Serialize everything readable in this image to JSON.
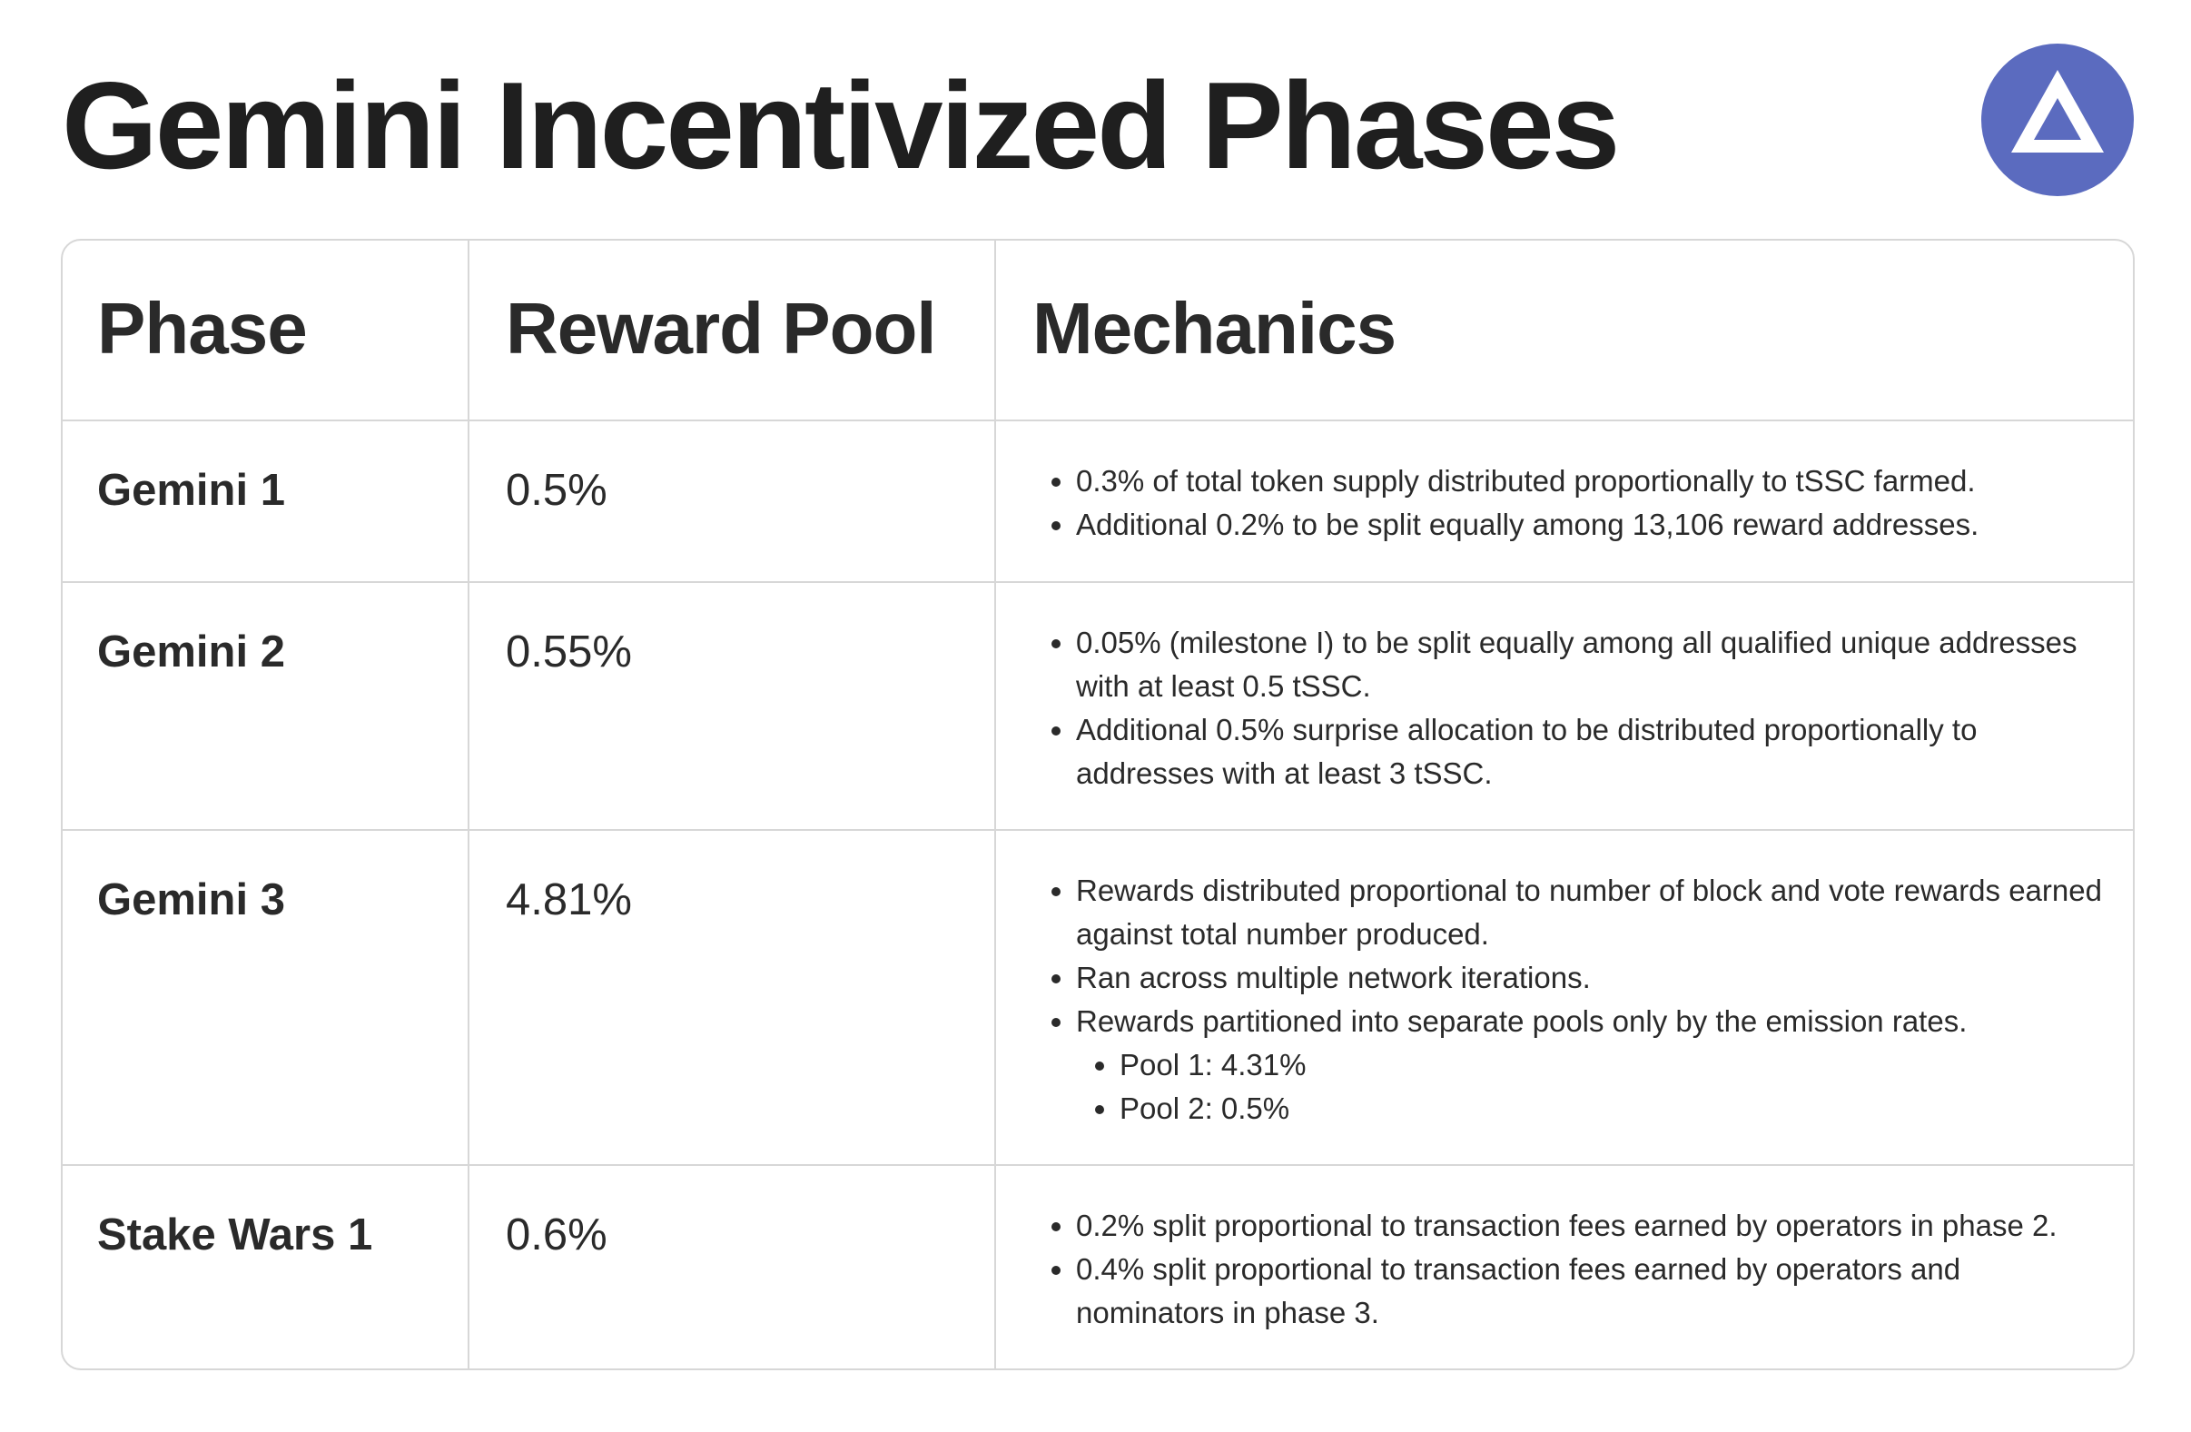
{
  "title": "Gemini Incentivized Phases",
  "logo": {
    "icon": "subspace-logo-icon",
    "color": "#5B6BBF"
  },
  "table": {
    "headers": [
      "Phase",
      "Reward Pool",
      "Mechanics"
    ],
    "rows": [
      {
        "phase": "Gemini 1",
        "pool": "0.5%",
        "mechanics": [
          "0.3% of total token supply distributed proportionally to tSSC farmed.",
          "Additional 0.2% to be split equally among 13,106 reward addresses."
        ]
      },
      {
        "phase": "Gemini 2",
        "pool": "0.55%",
        "mechanics": [
          "0.05% (milestone I) to be split equally among all qualified unique addresses with at least 0.5 tSSC.",
          "Additional 0.5% surprise allocation to be distributed proportionally to addresses with at least 3 tSSC."
        ]
      },
      {
        "phase": "Gemini 3",
        "pool": "4.81%",
        "mechanics": [
          "Rewards distributed proportional to number of block and vote rewards earned against total number produced.",
          "Ran across multiple network iterations.",
          "Rewards partitioned into separate pools only by the emission rates."
        ],
        "sub_mechanics": [
          "Pool 1: 4.31%",
          "Pool 2: 0.5%"
        ]
      },
      {
        "phase": "Stake Wars 1",
        "pool": "0.6%",
        "mechanics": [
          "0.2% split proportional to transaction fees earned by operators in phase 2.",
          "0.4% split proportional to transaction fees earned by operators and nominators in phase 3."
        ]
      }
    ]
  }
}
